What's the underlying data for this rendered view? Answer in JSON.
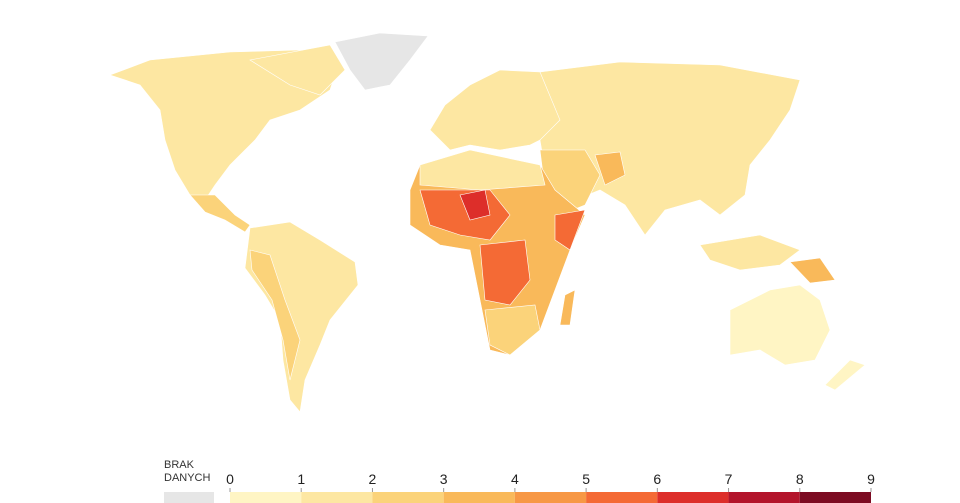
{
  "legend": {
    "no_data_label": "BRAK DANYCH",
    "no_data_color": "#e6e6e6",
    "ticks": [
      0,
      1,
      2,
      3,
      4,
      5,
      6,
      7,
      8,
      9
    ],
    "colors": [
      "#fff5c4",
      "#fde7a2",
      "#fbd37a",
      "#f9b95a",
      "#f79845",
      "#f46a35",
      "#dd2e2a",
      "#b3142b",
      "#7c0b22"
    ]
  }
}
